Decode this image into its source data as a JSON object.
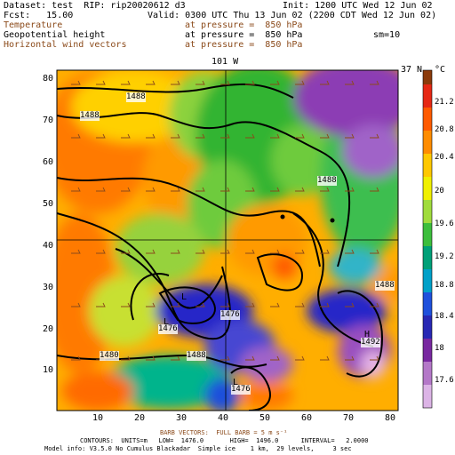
{
  "header": {
    "dataset": "Dataset: test  RIP: rip20020612 d3",
    "init": "Init: 1200 UTC Wed 12 Jun 02",
    "fcst": "Fcst:   15.00",
    "valid": "Valid: 0300 UTC Thu 13 Jun 02 (2200 CDT Wed 12 Jun 02)",
    "fields": [
      {
        "name": "Temperature",
        "pressure": "at pressure =  850 hPa",
        "color": "#8b4a1a"
      },
      {
        "name": "Geopotential height",
        "pressure": "at pressure =  850 hPa",
        "color": "#000000"
      },
      {
        "name": "Horizontal wind vectors",
        "pressure": "at pressure =  850 hPa",
        "color": "#8b4a1a"
      }
    ],
    "smoothing": "sm=10"
  },
  "map": {
    "lon_label": "101 W",
    "lat_label": "37 N",
    "x_ticks": [
      "10",
      "20",
      "30",
      "40",
      "50",
      "60",
      "70",
      "80"
    ],
    "y_ticks": [
      "10",
      "20",
      "30",
      "40",
      "50",
      "60",
      "70",
      "80"
    ],
    "contour_labels": [
      "1488",
      "1488",
      "1488",
      "1488",
      "1476",
      "1476",
      "1488",
      "1480",
      "1492",
      "1476"
    ],
    "low_marker": "L",
    "high_marker": "H"
  },
  "colorbar": {
    "unit": "°C",
    "labels": [
      "21.2",
      "20.8",
      "20.4",
      "20",
      "19.6",
      "19.2",
      "18.8",
      "18.4",
      "18",
      "17.6"
    ]
  },
  "footer": {
    "barb": "BARB VECTORS:  FULL BARB = 5 m s⁻¹",
    "contours": "CONTOURS:  UNITS=m   LOW=  1476.0       HIGH=  1496.0      INTERVAL=   2.0000",
    "model": "Model info: V3.5.0 No Cumulus Blackadar  Simple ice    1 km,  29 levels,     3 sec"
  }
}
